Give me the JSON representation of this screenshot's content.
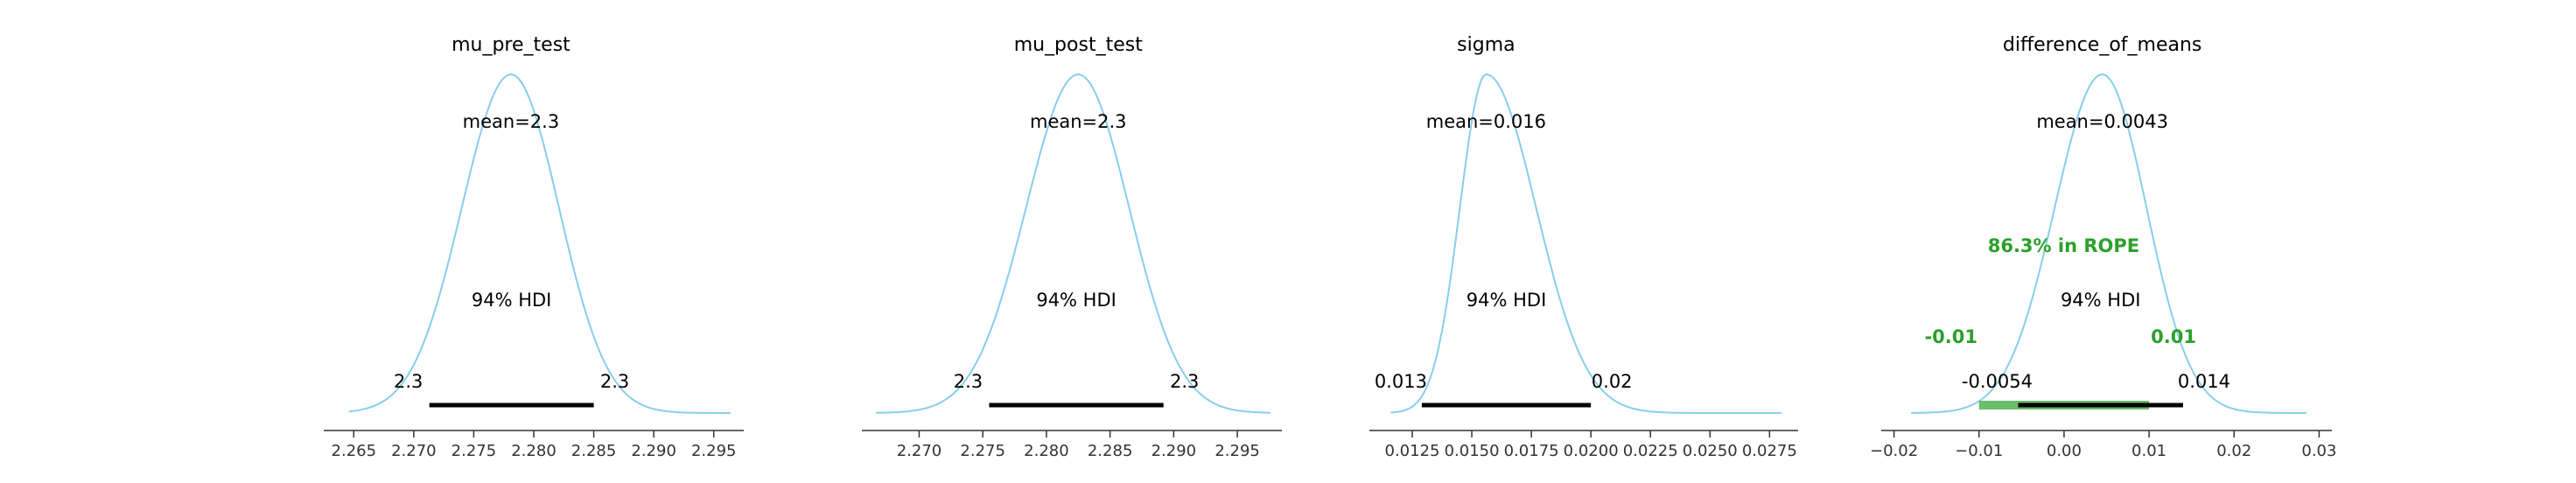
{
  "chart_data": [
    {
      "type": "density",
      "title": "mu_pre_test",
      "xlim": [
        2.2625,
        2.2975
      ],
      "ticks": [
        2.265,
        2.27,
        2.275,
        2.28,
        2.285,
        2.29,
        2.295
      ],
      "tick_labels": [
        "2.265",
        "2.270",
        "2.275",
        "2.280",
        "2.285",
        "2.290",
        "2.295"
      ],
      "color": "#87ceeb",
      "mode": 2.2781,
      "left_spread": 0.0041,
      "right_spread": 0.004,
      "tail_range": [
        2.2646,
        2.2964
      ],
      "mean_label": "mean=2.3",
      "hdi_label": "94% HDI",
      "hdi": [
        2.2713,
        2.285
      ],
      "hdi_lower_label": "2.3",
      "hdi_upper_label": "2.3"
    },
    {
      "type": "density",
      "title": "mu_post_test",
      "xlim": [
        2.2655,
        2.2985
      ],
      "ticks": [
        2.27,
        2.275,
        2.28,
        2.285,
        2.29,
        2.295
      ],
      "tick_labels": [
        "2.270",
        "2.275",
        "2.280",
        "2.285",
        "2.290",
        "2.295"
      ],
      "color": "#87ceeb",
      "mode": 2.2825,
      "left_spread": 0.0041,
      "right_spread": 0.004,
      "tail_range": [
        2.2666,
        2.2976
      ],
      "mean_label": "mean=2.3",
      "hdi_label": "94% HDI",
      "hdi": [
        2.2755,
        2.2892
      ],
      "hdi_lower_label": "2.3",
      "hdi_upper_label": "2.3"
    },
    {
      "type": "density",
      "title": "sigma",
      "xlim": [
        0.0107,
        0.0287
      ],
      "ticks": [
        0.0125,
        0.015,
        0.0175,
        0.02,
        0.0225,
        0.025,
        0.0275
      ],
      "tick_labels": [
        "0.0125",
        "0.0150",
        "0.0175",
        "0.0200",
        "0.0225",
        "0.0250",
        "0.0275"
      ],
      "color": "#87ceeb",
      "mode": 0.0156,
      "left_spread": 0.0011,
      "right_spread": 0.0021,
      "tail_range": [
        0.0116,
        0.028
      ],
      "mean_label": "mean=0.016",
      "hdi_label": "94% HDI",
      "hdi": [
        0.0129,
        0.02
      ],
      "hdi_lower_label": "0.013",
      "hdi_upper_label": "0.02"
    },
    {
      "type": "density",
      "title": "difference_of_means",
      "xlim": [
        -0.0215,
        0.0315
      ],
      "ticks": [
        -0.02,
        -0.01,
        0.0,
        0.01,
        0.02,
        0.03
      ],
      "tick_labels": [
        "−0.02",
        "−0.01",
        "0.00",
        "0.01",
        "0.02",
        "0.03"
      ],
      "color": "#87ceeb",
      "mode": 0.0045,
      "left_spread": 0.0056,
      "right_spread": 0.0052,
      "tail_range": [
        -0.018,
        0.0285
      ],
      "mean_label": "mean=0.0043",
      "hdi_label": "94% HDI",
      "hdi": [
        -0.0054,
        0.014
      ],
      "hdi_lower_label": "-0.0054",
      "hdi_upper_label": "0.014",
      "rope": [
        -0.01,
        0.01
      ],
      "rope_color": "#2ca02c",
      "rope_label": "86.3% in ROPE",
      "rope_lower_label": "-0.01",
      "rope_upper_label": "0.01"
    }
  ]
}
